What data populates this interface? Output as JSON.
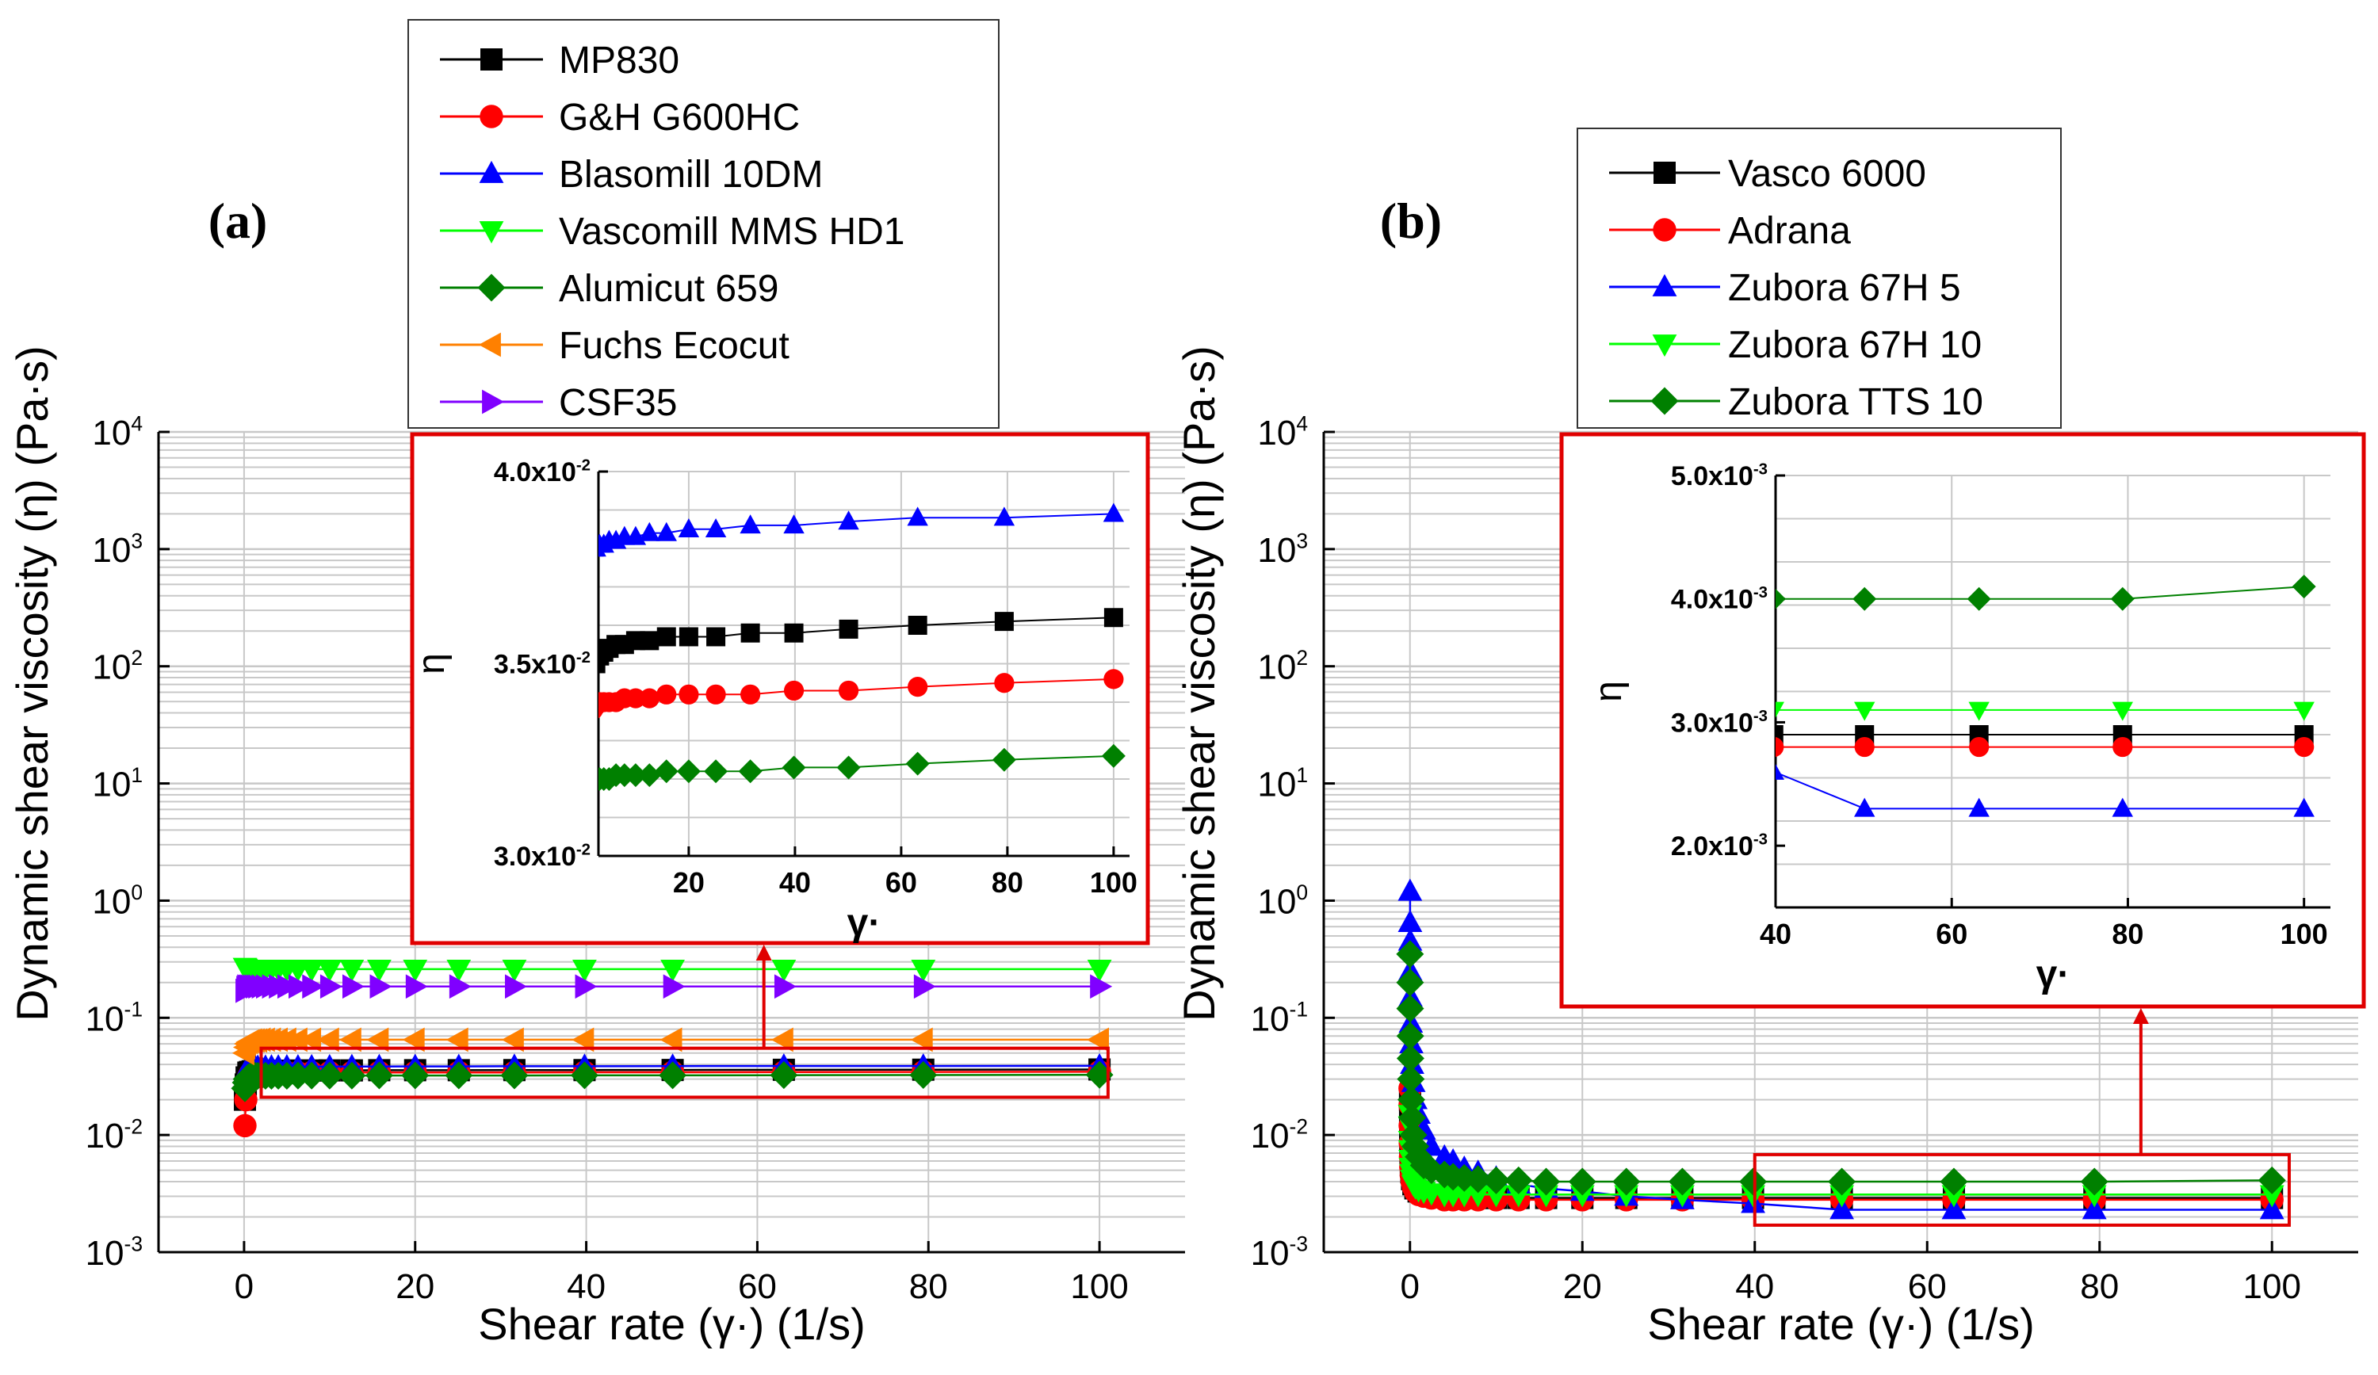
{
  "chart_data": [
    {
      "panel_label": "(a)",
      "type": "scatter",
      "xlabel": "Shear rate (γ·) (1/s)",
      "ylabel": "Dynamic shear viscosity (η) (Pa·s)",
      "x_scale": "linear",
      "y_scale": "log",
      "xlim": [
        -10,
        110
      ],
      "ylim": [
        0.001,
        10000
      ],
      "xticks": [
        "0",
        "20",
        "40",
        "60",
        "80",
        "100"
      ],
      "yticks": [
        {
          "base": "10",
          "exp": "4"
        },
        {
          "base": "10",
          "exp": "3"
        },
        {
          "base": "10",
          "exp": "2"
        },
        {
          "base": "10",
          "exp": "1"
        },
        {
          "base": "10",
          "exp": "0"
        },
        {
          "base": "10",
          "exp": "-1"
        },
        {
          "base": "10",
          "exp": "-2"
        },
        {
          "base": "10",
          "exp": "-3"
        }
      ],
      "grid": true,
      "legend_position": "top, above plot",
      "x": [
        0.1,
        0.2,
        0.3,
        0.5,
        0.7,
        1,
        1.3,
        1.6,
        2,
        2.5,
        3.2,
        4,
        5,
        6.3,
        7.9,
        10,
        12.6,
        15.8,
        20,
        25.1,
        31.6,
        39.8,
        50.1,
        63.1,
        79.4,
        100
      ],
      "series": [
        {
          "name": "MP830",
          "color": "#000000",
          "marker": "square",
          "values": [
            0.02,
            0.027,
            0.031,
            0.034,
            0.0345,
            0.035,
            0.035,
            0.035,
            0.035,
            0.035,
            0.0352,
            0.0353,
            0.0354,
            0.0355,
            0.0355,
            0.0356,
            0.0356,
            0.0357,
            0.0357,
            0.0357,
            0.0358,
            0.0358,
            0.0359,
            0.036,
            0.0361,
            0.0362
          ]
        },
        {
          "name": "G&H G600HC",
          "color": "#ff0000",
          "marker": "circle",
          "values": [
            0.012,
            0.02,
            0.027,
            0.031,
            0.033,
            0.0335,
            0.0336,
            0.0337,
            0.0338,
            0.0339,
            0.034,
            0.034,
            0.034,
            0.034,
            0.0341,
            0.0341,
            0.0341,
            0.0342,
            0.0342,
            0.0342,
            0.0342,
            0.0343,
            0.0343,
            0.0344,
            0.0345,
            0.0346
          ]
        },
        {
          "name": "Blasomill 10DM",
          "color": "#0000ff",
          "marker": "triangle-up",
          "values": [
            0.03,
            0.034,
            0.036,
            0.037,
            0.0375,
            0.0377,
            0.0378,
            0.0379,
            0.038,
            0.038,
            0.0381,
            0.0381,
            0.0382,
            0.0382,
            0.0383,
            0.0383,
            0.0384,
            0.0384,
            0.0385,
            0.0385,
            0.0386,
            0.0386,
            0.0387,
            0.0388,
            0.0388,
            0.0389
          ]
        },
        {
          "name": "Vascomill MMS HD1",
          "color": "#00ff00",
          "marker": "triangle-down",
          "values": [
            0.27,
            0.265,
            0.26,
            0.26,
            0.26,
            0.26,
            0.26,
            0.26,
            0.26,
            0.26,
            0.26,
            0.26,
            0.26,
            0.26,
            0.26,
            0.26,
            0.26,
            0.26,
            0.26,
            0.26,
            0.26,
            0.26,
            0.26,
            0.26,
            0.26,
            0.26
          ]
        },
        {
          "name": "Alumicut 659",
          "color": "#008000",
          "marker": "diamond",
          "values": [
            0.025,
            0.028,
            0.03,
            0.031,
            0.0315,
            0.032,
            0.032,
            0.032,
            0.032,
            0.032,
            0.032,
            0.032,
            0.032,
            0.0321,
            0.0321,
            0.0321,
            0.0321,
            0.0322,
            0.0322,
            0.0322,
            0.0322,
            0.0323,
            0.0323,
            0.0324,
            0.0325,
            0.0326
          ]
        },
        {
          "name": "Fuchs Ecocut",
          "color": "#ff8000",
          "marker": "triangle-left",
          "values": [
            0.05,
            0.056,
            0.06,
            0.062,
            0.063,
            0.064,
            0.064,
            0.064,
            0.065,
            0.065,
            0.065,
            0.065,
            0.065,
            0.065,
            0.065,
            0.065,
            0.065,
            0.065,
            0.065,
            0.065,
            0.065,
            0.065,
            0.065,
            0.065,
            0.065,
            0.065
          ]
        },
        {
          "name": "CSF35",
          "color": "#8000ff",
          "marker": "triangle-right",
          "values": [
            0.17,
            0.18,
            0.185,
            0.185,
            0.185,
            0.185,
            0.185,
            0.185,
            0.185,
            0.185,
            0.185,
            0.185,
            0.185,
            0.185,
            0.185,
            0.185,
            0.185,
            0.185,
            0.185,
            0.185,
            0.185,
            0.185,
            0.185,
            0.185,
            0.185,
            0.185
          ]
        }
      ],
      "inset": {
        "ylabel": "η",
        "xlabel": "γ·",
        "x_scale": "linear",
        "xlim": [
          3,
          103
        ],
        "ylim": [
          0.03,
          0.04
        ],
        "xticks": [
          "20",
          "40",
          "60",
          "80",
          "100"
        ],
        "yticks": [
          {
            "mant": "3.0x10",
            "exp": "-2",
            "value": 0.03
          },
          {
            "mant": "3.5x10",
            "exp": "-2",
            "value": 0.035
          },
          {
            "mant": "4.0x10",
            "exp": "-2",
            "value": 0.04
          }
        ],
        "highlight_xrange": [
          2,
          101
        ],
        "highlight_yrange": [
          0.021,
          0.055
        ]
      }
    },
    {
      "panel_label": "(b)",
      "type": "scatter",
      "xlabel": "Shear rate (γ·) (1/s)",
      "ylabel": "Dynamic shear viscosity (η) (Pa·s)",
      "x_scale": "linear",
      "y_scale": "log",
      "xlim": [
        -10,
        110
      ],
      "ylim": [
        0.001,
        10000
      ],
      "xticks": [
        "0",
        "20",
        "40",
        "60",
        "80",
        "100"
      ],
      "yticks": [
        {
          "base": "10",
          "exp": "4"
        },
        {
          "base": "10",
          "exp": "3"
        },
        {
          "base": "10",
          "exp": "2"
        },
        {
          "base": "10",
          "exp": "1"
        },
        {
          "base": "10",
          "exp": "0"
        },
        {
          "base": "10",
          "exp": "-1"
        },
        {
          "base": "10",
          "exp": "-2"
        },
        {
          "base": "10",
          "exp": "-3"
        }
      ],
      "grid": true,
      "legend_position": "top, above plot",
      "x": [
        0.01,
        0.016,
        0.025,
        0.04,
        0.063,
        0.1,
        0.16,
        0.25,
        0.4,
        0.63,
        1,
        1.6,
        2.5,
        4,
        5,
        6.3,
        7.9,
        10,
        12.6,
        15.8,
        20,
        25.1,
        31.6,
        39.8,
        50.1,
        63.1,
        79.4,
        100
      ],
      "series": [
        {
          "name": "Vasco 6000",
          "color": "#000000",
          "marker": "square",
          "values": [
            0.02,
            0.015,
            0.011,
            0.008,
            0.0065,
            0.0055,
            0.0048,
            0.0042,
            0.0038,
            0.0035,
            0.0033,
            0.0032,
            0.0031,
            0.003,
            0.003,
            0.0029,
            0.0029,
            0.0029,
            0.0029,
            0.0029,
            0.0029,
            0.0029,
            0.0029,
            0.0029,
            0.0029,
            0.0029,
            0.0029,
            0.0029
          ]
        },
        {
          "name": "Adrana",
          "color": "#ff0000",
          "marker": "circle",
          "values": [
            0.025,
            0.018,
            0.012,
            0.0085,
            0.0065,
            0.0053,
            0.0045,
            0.004,
            0.0036,
            0.0033,
            0.0031,
            0.003,
            0.0029,
            0.0028,
            0.0028,
            0.0028,
            0.0028,
            0.0028,
            0.0028,
            0.0028,
            0.0028,
            0.0028,
            0.0028,
            0.0028,
            0.0028,
            0.0028,
            0.0028,
            0.0028
          ]
        },
        {
          "name": "Zubora 67H 5",
          "color": "#0000ff",
          "marker": "triangle-up",
          "values": [
            1.2,
            0.65,
            0.45,
            0.25,
            0.15,
            0.09,
            0.06,
            0.04,
            0.028,
            0.02,
            0.015,
            0.011,
            0.008,
            0.0065,
            0.006,
            0.0052,
            0.0048,
            0.0043,
            0.0038,
            0.0035,
            0.0033,
            0.003,
            0.0028,
            0.0026,
            0.0023,
            0.0023,
            0.0023,
            0.0023
          ]
        },
        {
          "name": "Zubora 67H 10",
          "color": "#00ff00",
          "marker": "triangle-down",
          "values": [
            0.015,
            0.012,
            0.009,
            0.0075,
            0.0062,
            0.0053,
            0.0047,
            0.0042,
            0.0038,
            0.0036,
            0.0034,
            0.0033,
            0.0032,
            0.0031,
            0.0031,
            0.0031,
            0.0031,
            0.0031,
            0.0031,
            0.0031,
            0.0031,
            0.0031,
            0.0031,
            0.0031,
            0.0031,
            0.0031,
            0.0031,
            0.0031
          ]
        },
        {
          "name": "Zubora TTS 10",
          "color": "#008000",
          "marker": "diamond",
          "values": [
            0.35,
            0.2,
            0.12,
            0.07,
            0.045,
            0.03,
            0.02,
            0.014,
            0.01,
            0.008,
            0.0065,
            0.0055,
            0.005,
            0.0046,
            0.0044,
            0.0043,
            0.0042,
            0.0041,
            0.0041,
            0.004,
            0.004,
            0.004,
            0.004,
            0.004,
            0.004,
            0.004,
            0.004,
            0.0041
          ]
        }
      ],
      "inset": {
        "ylabel": "η",
        "xlabel": "γ·",
        "x_scale": "linear",
        "xlim": [
          40,
          103
        ],
        "ylim": [
          0.0015,
          0.005
        ],
        "xticks": [
          "40",
          "60",
          "80",
          "100"
        ],
        "yticks": [
          {
            "mant": "2.0x10",
            "exp": "-3",
            "value": 0.002
          },
          {
            "mant": "3.0x10",
            "exp": "-3",
            "value": 0.003
          },
          {
            "mant": "4.0x10",
            "exp": "-3",
            "value": 0.004
          },
          {
            "mant": "5.0x10",
            "exp": "-3",
            "value": 0.005
          }
        ],
        "highlight_xrange": [
          40,
          102
        ],
        "highlight_yrange": [
          0.0017,
          0.0068
        ]
      }
    }
  ],
  "colors": {
    "grid": "#c8c8c8",
    "axis": "#000000",
    "highlight": "#e00000",
    "background": "#ffffff"
  }
}
